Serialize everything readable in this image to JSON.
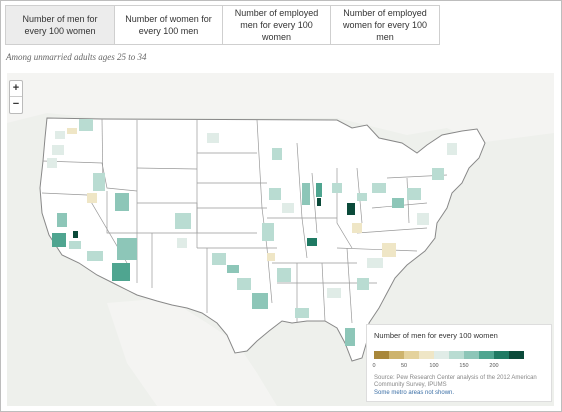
{
  "tabs": [
    {
      "label": "Number of men for every 100 women",
      "active": true
    },
    {
      "label": "Number of women for every 100 men",
      "active": false
    },
    {
      "label": "Number of employed men for every 100 women",
      "active": false
    },
    {
      "label": "Number of employed women for every 100 men",
      "active": false
    }
  ],
  "subtitle": "Among unmarried adults ages 25 to 34",
  "zoom": {
    "in_label": "+",
    "out_label": "−"
  },
  "legend": {
    "title": "Number of men for every 100 women",
    "ticks": [
      "0",
      "50",
      "100",
      "150",
      "200"
    ],
    "colors": [
      "#a8873a",
      "#cdb36c",
      "#e4d29c",
      "#efe6c6",
      "#e0ece7",
      "#b9dcd2",
      "#8dc6b8",
      "#4fa590",
      "#1f7a63",
      "#0b4a3a"
    ],
    "source": "Source: Pew Research Center analysis of the 2012 American Community Survey, IPUMS",
    "note": "Some metro areas not shown."
  }
}
